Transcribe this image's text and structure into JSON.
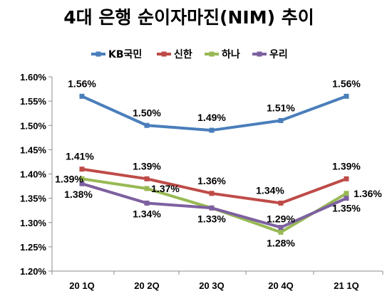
{
  "chart_data": {
    "type": "line",
    "title": "4대 은행 순이자마진(NIM) 추이",
    "categories": [
      "20 1Q",
      "20 2Q",
      "20 3Q",
      "20 4Q",
      "21 1Q"
    ],
    "ylim": [
      1.2,
      1.6
    ],
    "y_ticks": [
      "1.20%",
      "1.25%",
      "1.30%",
      "1.35%",
      "1.40%",
      "1.45%",
      "1.50%",
      "1.55%",
      "1.60%"
    ],
    "legend_position": "top",
    "grid": false,
    "series": [
      {
        "name": "KB국민",
        "color": "#4a7ebb",
        "values": [
          1.56,
          1.5,
          1.49,
          1.51,
          1.56
        ],
        "labels": [
          "1.56%",
          "1.50%",
          "1.49%",
          "1.51%",
          "1.56%"
        ]
      },
      {
        "name": "신한",
        "color": "#be4b48",
        "values": [
          1.41,
          1.39,
          1.36,
          1.34,
          1.39
        ],
        "labels": [
          "1.41%",
          "1.39%",
          "1.36%",
          "1.34%",
          "1.39%"
        ]
      },
      {
        "name": "하나",
        "color": "#98b954",
        "values": [
          1.39,
          1.37,
          1.33,
          1.28,
          1.36
        ],
        "labels": [
          "1.39%",
          "1.37%",
          "",
          "1.28%",
          "1.36%"
        ]
      },
      {
        "name": "우리",
        "color": "#7d60a0",
        "values": [
          1.38,
          1.34,
          1.33,
          1.29,
          1.35
        ],
        "labels": [
          "1.38%",
          "1.34%",
          "1.33%",
          "1.29%",
          "1.35%"
        ]
      }
    ]
  }
}
